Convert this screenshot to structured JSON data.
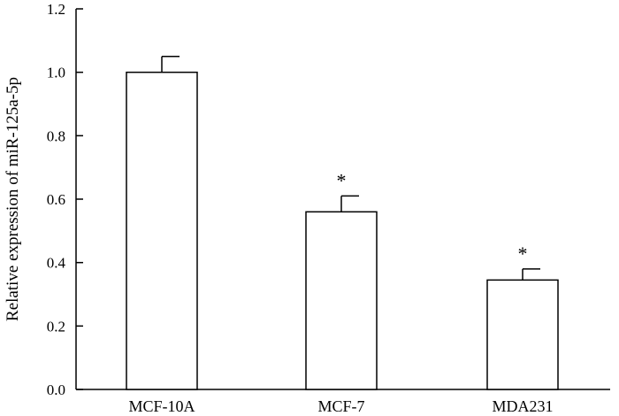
{
  "chart_data": {
    "type": "bar",
    "categories": [
      "MCF-10A",
      "MCF-7",
      "MDA231"
    ],
    "values": [
      1.0,
      0.56,
      0.345
    ],
    "errors": [
      0.05,
      0.05,
      0.035
    ],
    "significance": [
      "",
      "*",
      "*"
    ],
    "title": "",
    "xlabel": "",
    "ylabel": "Relative expression of miR-125a-5p",
    "ylim": [
      0,
      1.2
    ],
    "yticks": [
      "0.0",
      "0.2",
      "0.4",
      "0.6",
      "0.8",
      "1.0",
      "1.2"
    ],
    "grid": false,
    "bar_fill": "#ffffff",
    "bar_stroke": "#000000"
  }
}
